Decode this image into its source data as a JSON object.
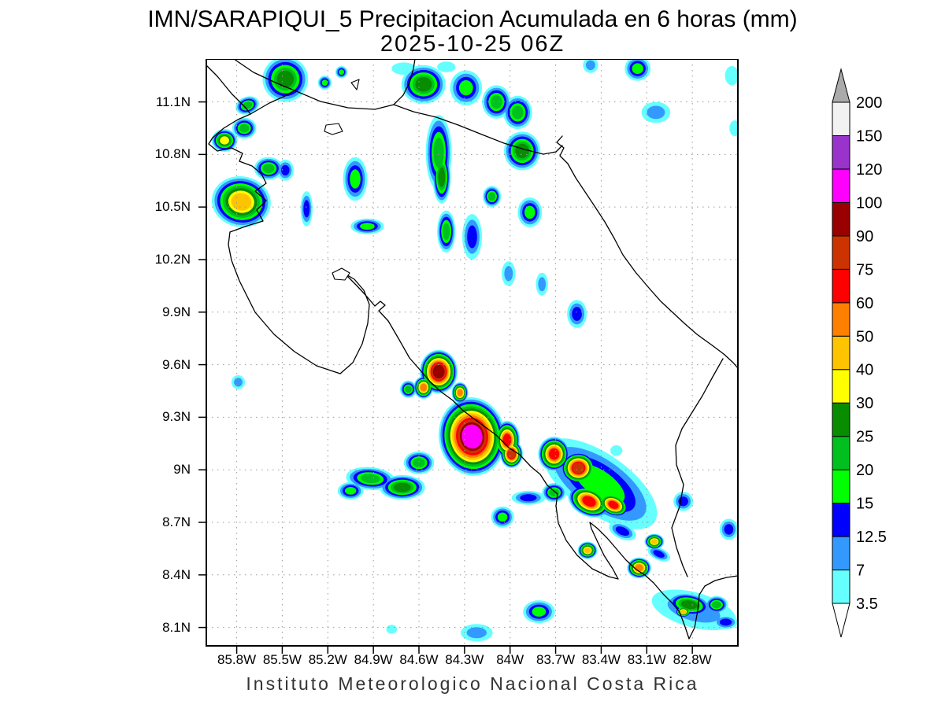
{
  "title": "IMN/SARAPIQUI_5 Precipitacion Acumulada en 6 horas (mm)",
  "subtitle": "2025-10-25 06Z",
  "footer": "Instituto Meteorologico Nacional Costa Rica",
  "axes": {
    "lat_labels": [
      "11.1N",
      "10.8N",
      "10.5N",
      "10.2N",
      "9.9N",
      "9.6N",
      "9.3N",
      "9N",
      "8.7N",
      "8.4N",
      "8.1N"
    ],
    "lon_labels": [
      "85.8W",
      "85.5W",
      "85.2W",
      "84.9W",
      "84.6W",
      "84.3W",
      "84W",
      "83.7W",
      "83.4W",
      "83.1W",
      "82.8W"
    ]
  },
  "chart_data": {
    "type": "heatmap",
    "subtype": "filled-contour-precipitation-map",
    "title": "IMN/SARAPIQUI_5 Precipitacion Acumulada en 6 horas (mm)",
    "valid_time": "2025-10-25 06Z",
    "units": "mm",
    "region": "Costa Rica",
    "lon_min_w": 82.5,
    "lon_max_w": 86.0,
    "lat_min": 7.995,
    "lat_max": 11.345,
    "grid_step_deg": 0.3,
    "legend_position": "right",
    "levels": [
      3.5,
      7,
      12.5,
      15,
      20,
      25,
      30,
      40,
      50,
      60,
      75,
      90,
      100,
      120,
      150,
      200
    ],
    "colors": [
      "#66ffff",
      "#3399ff",
      "#0000ff",
      "#00ff00",
      "#00c020",
      "#088c00",
      "#ffff00",
      "#ffc400",
      "#ff7f00",
      "#ff0000",
      "#cc3300",
      "#990000",
      "#ff00ff",
      "#9933cc",
      "#f2f2f2",
      "#aaaaaa"
    ],
    "arrow_under_color": "#ffffff",
    "arrow_over_color": "#aaaaaa",
    "cell_format": [
      "lon_w",
      "lat_n",
      "width_deg",
      "height_deg",
      "rotation_deg",
      "peak_band_mm"
    ],
    "cells": [
      [
        85.48,
        11.23,
        0.3,
        0.26,
        0,
        25
      ],
      [
        85.73,
        11.08,
        0.16,
        0.1,
        -20,
        20
      ],
      [
        85.75,
        10.95,
        0.16,
        0.12,
        0,
        20
      ],
      [
        85.88,
        10.88,
        0.17,
        0.13,
        0,
        30
      ],
      [
        85.59,
        10.72,
        0.19,
        0.13,
        0,
        20
      ],
      [
        85.77,
        10.53,
        0.39,
        0.29,
        10,
        40
      ],
      [
        85.48,
        10.71,
        0.11,
        0.12,
        0,
        12.5
      ],
      [
        85.34,
        10.49,
        0.08,
        0.2,
        0,
        12.5
      ],
      [
        85.22,
        11.21,
        0.09,
        0.08,
        0,
        15
      ],
      [
        85.02,
        10.66,
        0.16,
        0.25,
        0,
        15
      ],
      [
        84.94,
        10.39,
        0.22,
        0.09,
        0,
        15
      ],
      [
        84.57,
        11.2,
        0.29,
        0.22,
        0,
        25
      ],
      [
        85.11,
        11.27,
        0.08,
        0.07,
        0,
        15
      ],
      [
        84.47,
        10.81,
        0.17,
        0.43,
        0,
        20
      ],
      [
        84.45,
        10.67,
        0.12,
        0.3,
        0,
        25
      ],
      [
        84.42,
        10.36,
        0.12,
        0.24,
        0,
        20
      ],
      [
        84.29,
        11.18,
        0.21,
        0.2,
        0,
        15
      ],
      [
        84.09,
        11.1,
        0.19,
        0.19,
        0,
        20
      ],
      [
        84.12,
        10.56,
        0.12,
        0.12,
        0,
        20
      ],
      [
        83.95,
        11.04,
        0.19,
        0.19,
        0,
        20
      ],
      [
        83.92,
        10.82,
        0.24,
        0.22,
        0,
        25
      ],
      [
        83.87,
        10.47,
        0.16,
        0.17,
        0,
        15
      ],
      [
        84.25,
        10.33,
        0.13,
        0.26,
        0,
        12.5
      ],
      [
        84.01,
        10.12,
        0.09,
        0.14,
        0,
        7
      ],
      [
        83.79,
        10.06,
        0.08,
        0.13,
        0,
        7
      ],
      [
        83.56,
        9.89,
        0.13,
        0.16,
        0,
        12.5
      ],
      [
        83.16,
        11.29,
        0.17,
        0.14,
        0,
        15
      ],
      [
        83.04,
        11.04,
        0.19,
        0.12,
        0,
        7
      ],
      [
        82.54,
        11.25,
        0.09,
        0.11,
        0,
        3.5
      ],
      [
        82.52,
        10.95,
        0.07,
        0.09,
        0,
        3.5
      ],
      [
        83.47,
        11.31,
        0.1,
        0.09,
        0,
        7
      ],
      [
        84.7,
        11.29,
        0.16,
        0.07,
        0,
        3.5
      ],
      [
        84.42,
        11.3,
        0.12,
        0.06,
        0,
        3.5
      ],
      [
        85.79,
        9.5,
        0.09,
        0.08,
        0,
        7
      ],
      [
        84.47,
        9.56,
        0.25,
        0.25,
        0,
        90
      ],
      [
        84.57,
        9.47,
        0.13,
        0.13,
        0,
        50
      ],
      [
        84.67,
        9.46,
        0.11,
        0.1,
        0,
        20
      ],
      [
        84.33,
        9.44,
        0.11,
        0.12,
        0,
        50
      ],
      [
        84.25,
        9.19,
        0.44,
        0.45,
        -8,
        100
      ],
      [
        84.02,
        9.17,
        0.17,
        0.22,
        0,
        60
      ],
      [
        83.99,
        9.09,
        0.15,
        0.16,
        0,
        75
      ],
      [
        83.71,
        9.09,
        0.21,
        0.2,
        0,
        60
      ],
      [
        83.55,
        9.01,
        0.24,
        0.19,
        0,
        75
      ],
      [
        84.92,
        8.95,
        0.32,
        0.13,
        5,
        20
      ],
      [
        85.05,
        8.88,
        0.17,
        0.1,
        0,
        15
      ],
      [
        84.71,
        8.9,
        0.3,
        0.14,
        0,
        25
      ],
      [
        84.6,
        9.04,
        0.2,
        0.13,
        0,
        20
      ],
      [
        83.88,
        8.84,
        0.22,
        0.08,
        0,
        12.5
      ],
      [
        83.71,
        8.87,
        0.16,
        0.11,
        0,
        20
      ],
      [
        84.05,
        8.73,
        0.15,
        0.12,
        0,
        15
      ],
      [
        83.41,
        8.92,
        0.88,
        0.34,
        35,
        15
      ],
      [
        83.48,
        8.82,
        0.29,
        0.17,
        25,
        60
      ],
      [
        83.32,
        8.8,
        0.22,
        0.13,
        25,
        60
      ],
      [
        83.05,
        8.59,
        0.13,
        0.09,
        0,
        40
      ],
      [
        83.49,
        8.54,
        0.13,
        0.1,
        0,
        40
      ],
      [
        83.15,
        8.44,
        0.16,
        0.12,
        0,
        50
      ],
      [
        83.26,
        8.65,
        0.19,
        0.09,
        25,
        12.5
      ],
      [
        83.02,
        8.52,
        0.16,
        0.07,
        25,
        12.5
      ],
      [
        82.86,
        8.82,
        0.13,
        0.11,
        0,
        12.5
      ],
      [
        82.56,
        8.66,
        0.12,
        0.12,
        0,
        12.5
      ],
      [
        82.82,
        8.23,
        0.29,
        0.13,
        10,
        25
      ],
      [
        82.86,
        8.19,
        0.11,
        0.07,
        0,
        40
      ],
      [
        82.64,
        8.23,
        0.15,
        0.1,
        0,
        20
      ],
      [
        82.58,
        8.13,
        0.16,
        0.08,
        0,
        12.5
      ],
      [
        82.79,
        8.2,
        0.57,
        0.2,
        15,
        7
      ],
      [
        83.81,
        8.19,
        0.21,
        0.13,
        0,
        15
      ],
      [
        84.22,
        8.07,
        0.21,
        0.1,
        0,
        7
      ],
      [
        83.3,
        9.11,
        0.08,
        0.06,
        0,
        3.5
      ],
      [
        84.78,
        8.09,
        0.07,
        0.05,
        0,
        3.5
      ]
    ]
  }
}
